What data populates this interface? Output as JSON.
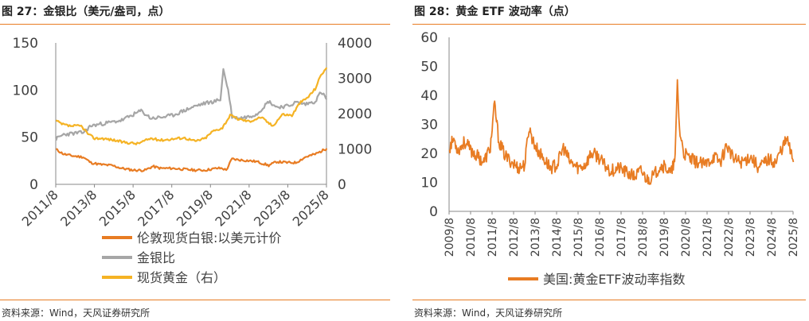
{
  "charts": [
    {
      "figure_title": "图 27：金银比（美元/盎司，点）",
      "source": "资料来源：Wind，天风证券研究所"
    },
    {
      "figure_title": "图 28：黄金 ETF 波动率（点）",
      "source": "资料来源：Wind，天风证券研究所"
    }
  ],
  "colors": {
    "orange": "#e87c23",
    "gray": "#a6a6a6",
    "gold": "#f5b324",
    "rule": "#e87c23"
  },
  "chart_data": [
    {
      "type": "line",
      "title": "",
      "x_tick_labels": [
        "2011/8",
        "2013/8",
        "2015/8",
        "2017/8",
        "2019/8",
        "2021/8",
        "2023/8",
        "2025/8"
      ],
      "y_left": {
        "ylim": [
          0,
          150
        ],
        "ticks": [
          "0",
          "50",
          "100",
          "150"
        ]
      },
      "y_right": {
        "ylim": [
          0,
          4000
        ],
        "ticks": [
          "0",
          "1000",
          "2000",
          "3000",
          "4000"
        ]
      },
      "legend_position": "bottom",
      "series": [
        {
          "name": "伦敦现货白银:以美元计价",
          "axis": "left",
          "color": "#e87c23",
          "x": [
            2011.6,
            2012.0,
            2012.5,
            2013.0,
            2013.4,
            2013.9,
            2014.5,
            2015.0,
            2015.6,
            2016.2,
            2016.6,
            2017.0,
            2017.6,
            2018.2,
            2018.8,
            2019.3,
            2019.9,
            2020.2,
            2020.4,
            2020.7,
            2021.0,
            2021.6,
            2022.0,
            2022.6,
            2023.0,
            2023.6,
            2024.0,
            2024.5,
            2025.0,
            2025.4,
            2025.6
          ],
          "values": [
            37,
            32,
            30,
            29,
            23,
            21,
            20,
            17,
            15,
            15,
            19,
            17,
            17,
            16,
            15,
            15,
            17,
            17,
            15,
            27,
            26,
            25,
            24,
            20,
            24,
            23,
            23,
            29,
            32,
            36,
            38
          ]
        },
        {
          "name": "金银比",
          "axis": "left",
          "color": "#a6a6a6",
          "x": [
            2011.6,
            2012.0,
            2012.5,
            2013.0,
            2013.4,
            2013.9,
            2014.5,
            2015.0,
            2015.6,
            2016.0,
            2016.5,
            2017.0,
            2017.6,
            2018.2,
            2018.8,
            2019.3,
            2019.8,
            2020.1,
            2020.25,
            2020.5,
            2020.7,
            2021.0,
            2021.6,
            2022.0,
            2022.6,
            2023.0,
            2023.6,
            2024.0,
            2024.5,
            2025.0,
            2025.3,
            2025.5,
            2025.6
          ],
          "values": [
            48,
            53,
            54,
            55,
            62,
            64,
            66,
            68,
            74,
            78,
            70,
            71,
            73,
            78,
            83,
            86,
            88,
            90,
            122,
            100,
            72,
            70,
            72,
            75,
            88,
            82,
            83,
            87,
            85,
            88,
            98,
            93,
            90
          ]
        },
        {
          "name": "现货黄金（右）",
          "axis": "right",
          "color": "#f5b324",
          "x": [
            2011.6,
            2011.9,
            2012.3,
            2012.9,
            2013.3,
            2013.6,
            2014.0,
            2014.6,
            2015.0,
            2015.8,
            2016.5,
            2017.0,
            2017.6,
            2018.2,
            2018.8,
            2019.3,
            2019.7,
            2020.2,
            2020.6,
            2021.0,
            2021.6,
            2022.2,
            2022.8,
            2023.3,
            2023.8,
            2024.2,
            2024.6,
            2025.0,
            2025.3,
            2025.6
          ],
          "values": [
            1800,
            1700,
            1650,
            1650,
            1400,
            1300,
            1300,
            1250,
            1200,
            1150,
            1300,
            1250,
            1280,
            1320,
            1220,
            1300,
            1500,
            1600,
            1950,
            1850,
            1780,
            1900,
            1650,
            1980,
            1950,
            2300,
            2450,
            2700,
            3100,
            3300
          ]
        }
      ]
    },
    {
      "type": "line",
      "title": "",
      "x_tick_labels": [
        "2009/8",
        "2010/8",
        "2011/8",
        "2012/8",
        "2013/8",
        "2014/8",
        "2015/8",
        "2016/8",
        "2017/8",
        "2018/8",
        "2019/8",
        "2020/8",
        "2021/8",
        "2022/8",
        "2023/8",
        "2024/8",
        "2025/8"
      ],
      "ylim": [
        0,
        60
      ],
      "y_ticks": [
        "0",
        "10",
        "20",
        "30",
        "40",
        "50",
        "60"
      ],
      "legend_position": "bottom",
      "series": [
        {
          "name": "美国:黄金ETF波动率指数",
          "color": "#e87c23",
          "x": [
            2009.6,
            2009.8,
            2010.0,
            2010.3,
            2010.6,
            2010.9,
            2011.2,
            2011.5,
            2011.7,
            2011.9,
            2012.2,
            2012.5,
            2012.8,
            2013.1,
            2013.3,
            2013.5,
            2013.7,
            2014.0,
            2014.3,
            2014.6,
            2014.9,
            2015.2,
            2015.6,
            2015.9,
            2016.2,
            2016.5,
            2016.8,
            2017.1,
            2017.5,
            2017.9,
            2018.2,
            2018.5,
            2018.8,
            2019.1,
            2019.4,
            2019.7,
            2019.9,
            2020.1,
            2020.2,
            2020.3,
            2020.5,
            2020.8,
            2021.1,
            2021.5,
            2021.9,
            2022.2,
            2022.5,
            2022.8,
            2023.2,
            2023.6,
            2024.0,
            2024.4,
            2024.8,
            2025.0,
            2025.3,
            2025.6
          ],
          "values": [
            22,
            25,
            21,
            24,
            21,
            19,
            17,
            22,
            37,
            24,
            19,
            17,
            15,
            16,
            29,
            24,
            21,
            18,
            15,
            16,
            22,
            17,
            15,
            16,
            20,
            19,
            16,
            14,
            15,
            13,
            12,
            14,
            11,
            12,
            16,
            15,
            13,
            18,
            45,
            28,
            20,
            18,
            17,
            16,
            19,
            17,
            23,
            18,
            17,
            19,
            15,
            18,
            17,
            21,
            25,
            17
          ]
        }
      ]
    }
  ]
}
